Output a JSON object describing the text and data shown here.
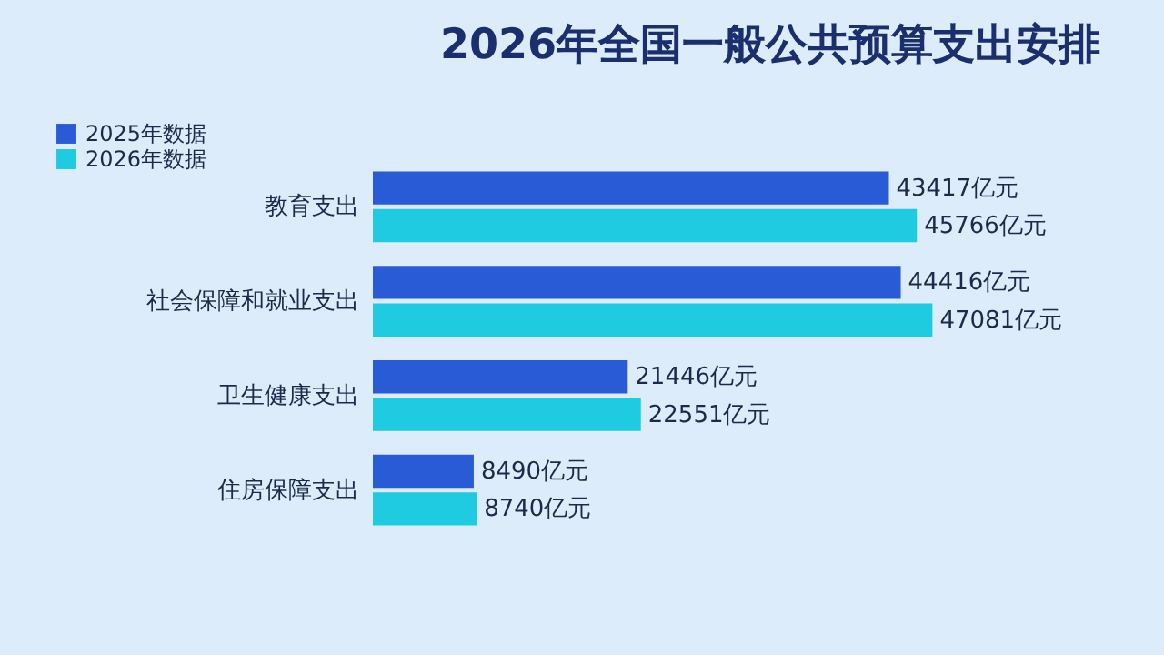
{
  "chart_data": {
    "type": "bar",
    "orientation": "horizontal",
    "title": "2026年全国一般公共预算支出安排",
    "categories": [
      "教育支出",
      "社会保障和就业支出",
      "卫生健康支出",
      "住房保障支出"
    ],
    "series": [
      {
        "name": "2025年数据",
        "color": "#2a5bd7",
        "values": [
          43417,
          44416,
          21446,
          8490
        ],
        "value_labels": [
          "43417亿元",
          "44416亿元",
          "21446亿元",
          "8490亿元"
        ]
      },
      {
        "name": "2026年数据",
        "color": "#1ecbe1",
        "values": [
          45766,
          47081,
          22551,
          8740
        ],
        "value_labels": [
          "45766亿元",
          "47081亿元",
          "22551亿元",
          "8740亿元"
        ]
      }
    ],
    "legend": "top left"
  }
}
